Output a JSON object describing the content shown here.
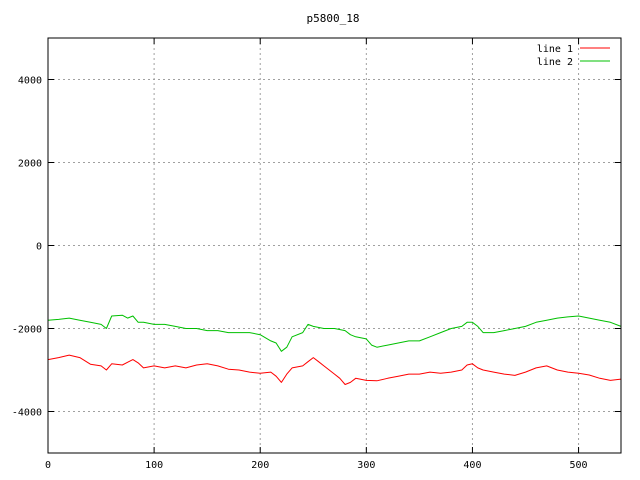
{
  "chart_data": {
    "type": "line",
    "title": "p5800_18",
    "xlabel": "",
    "ylabel": "",
    "xlim": [
      0,
      540
    ],
    "ylim": [
      -5000,
      5000
    ],
    "xticks": [
      0,
      100,
      200,
      300,
      400,
      500
    ],
    "yticks": [
      -4000,
      -2000,
      0,
      2000,
      4000
    ],
    "grid": true,
    "legend_position": "top-right",
    "series": [
      {
        "name": "line 1",
        "color": "#ff0000",
        "points": [
          [
            0,
            -2750
          ],
          [
            10,
            -2700
          ],
          [
            20,
            -2640
          ],
          [
            30,
            -2700
          ],
          [
            40,
            -2860
          ],
          [
            50,
            -2900
          ],
          [
            55,
            -3000
          ],
          [
            60,
            -2850
          ],
          [
            70,
            -2880
          ],
          [
            80,
            -2750
          ],
          [
            85,
            -2830
          ],
          [
            90,
            -2950
          ],
          [
            100,
            -2900
          ],
          [
            110,
            -2950
          ],
          [
            120,
            -2900
          ],
          [
            130,
            -2950
          ],
          [
            140,
            -2880
          ],
          [
            150,
            -2850
          ],
          [
            160,
            -2900
          ],
          [
            170,
            -2980
          ],
          [
            180,
            -3000
          ],
          [
            190,
            -3050
          ],
          [
            200,
            -3080
          ],
          [
            210,
            -3050
          ],
          [
            215,
            -3150
          ],
          [
            220,
            -3300
          ],
          [
            225,
            -3100
          ],
          [
            230,
            -2950
          ],
          [
            240,
            -2900
          ],
          [
            245,
            -2800
          ],
          [
            250,
            -2700
          ],
          [
            255,
            -2800
          ],
          [
            260,
            -2900
          ],
          [
            265,
            -3000
          ],
          [
            270,
            -3100
          ],
          [
            275,
            -3200
          ],
          [
            280,
            -3350
          ],
          [
            285,
            -3300
          ],
          [
            290,
            -3200
          ],
          [
            300,
            -3250
          ],
          [
            310,
            -3260
          ],
          [
            320,
            -3200
          ],
          [
            330,
            -3150
          ],
          [
            340,
            -3100
          ],
          [
            350,
            -3100
          ],
          [
            360,
            -3050
          ],
          [
            370,
            -3080
          ],
          [
            380,
            -3050
          ],
          [
            390,
            -3000
          ],
          [
            395,
            -2880
          ],
          [
            400,
            -2850
          ],
          [
            405,
            -2950
          ],
          [
            410,
            -3000
          ],
          [
            420,
            -3050
          ],
          [
            430,
            -3100
          ],
          [
            440,
            -3130
          ],
          [
            450,
            -3050
          ],
          [
            460,
            -2950
          ],
          [
            470,
            -2900
          ],
          [
            480,
            -3000
          ],
          [
            490,
            -3050
          ],
          [
            500,
            -3080
          ],
          [
            510,
            -3120
          ],
          [
            520,
            -3200
          ],
          [
            530,
            -3250
          ],
          [
            540,
            -3220
          ]
        ]
      },
      {
        "name": "line 2",
        "color": "#00c000",
        "points": [
          [
            0,
            -1800
          ],
          [
            10,
            -1780
          ],
          [
            20,
            -1750
          ],
          [
            30,
            -1800
          ],
          [
            40,
            -1850
          ],
          [
            50,
            -1900
          ],
          [
            55,
            -2000
          ],
          [
            60,
            -1700
          ],
          [
            70,
            -1680
          ],
          [
            75,
            -1750
          ],
          [
            80,
            -1700
          ],
          [
            85,
            -1850
          ],
          [
            90,
            -1850
          ],
          [
            100,
            -1900
          ],
          [
            110,
            -1900
          ],
          [
            120,
            -1950
          ],
          [
            130,
            -2000
          ],
          [
            140,
            -2000
          ],
          [
            150,
            -2050
          ],
          [
            160,
            -2050
          ],
          [
            170,
            -2100
          ],
          [
            180,
            -2100
          ],
          [
            190,
            -2100
          ],
          [
            200,
            -2150
          ],
          [
            210,
            -2300
          ],
          [
            215,
            -2350
          ],
          [
            220,
            -2550
          ],
          [
            225,
            -2450
          ],
          [
            230,
            -2200
          ],
          [
            240,
            -2100
          ],
          [
            245,
            -1900
          ],
          [
            250,
            -1950
          ],
          [
            260,
            -2000
          ],
          [
            270,
            -2000
          ],
          [
            280,
            -2050
          ],
          [
            285,
            -2150
          ],
          [
            290,
            -2200
          ],
          [
            300,
            -2250
          ],
          [
            305,
            -2400
          ],
          [
            310,
            -2450
          ],
          [
            320,
            -2400
          ],
          [
            330,
            -2350
          ],
          [
            340,
            -2300
          ],
          [
            350,
            -2300
          ],
          [
            360,
            -2200
          ],
          [
            370,
            -2100
          ],
          [
            380,
            -2000
          ],
          [
            390,
            -1950
          ],
          [
            395,
            -1850
          ],
          [
            400,
            -1850
          ],
          [
            405,
            -1950
          ],
          [
            410,
            -2100
          ],
          [
            420,
            -2100
          ],
          [
            430,
            -2050
          ],
          [
            440,
            -2000
          ],
          [
            450,
            -1950
          ],
          [
            460,
            -1850
          ],
          [
            470,
            -1800
          ],
          [
            480,
            -1750
          ],
          [
            490,
            -1720
          ],
          [
            500,
            -1700
          ],
          [
            510,
            -1750
          ],
          [
            520,
            -1800
          ],
          [
            530,
            -1850
          ],
          [
            540,
            -1950
          ]
        ]
      }
    ]
  }
}
